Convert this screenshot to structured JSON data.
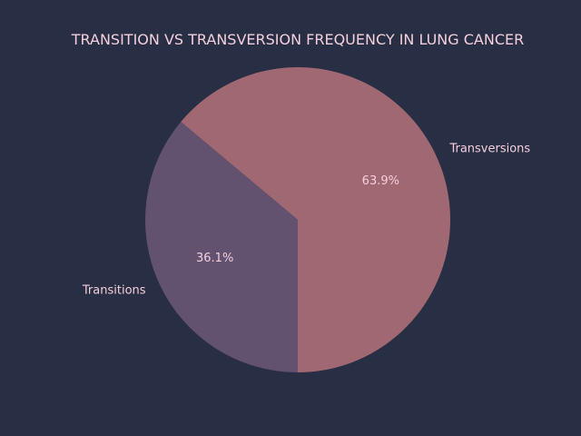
{
  "chart_data": {
    "type": "pie",
    "title": "TRANSITION VS TRANSVERSION FREQUENCY IN LUNG CANCER",
    "slices": [
      {
        "label": "Transversions",
        "value": 63.9,
        "pct_label": "63.9%",
        "color": "#a06872"
      },
      {
        "label": "Transitions",
        "value": 36.1,
        "pct_label": "36.1%",
        "color": "#62516f"
      }
    ],
    "start_angle_deg": 270,
    "direction": "counterclockwise",
    "legend": "none"
  },
  "colors": {
    "background": "#282e44",
    "text": "#f4cfdc"
  }
}
